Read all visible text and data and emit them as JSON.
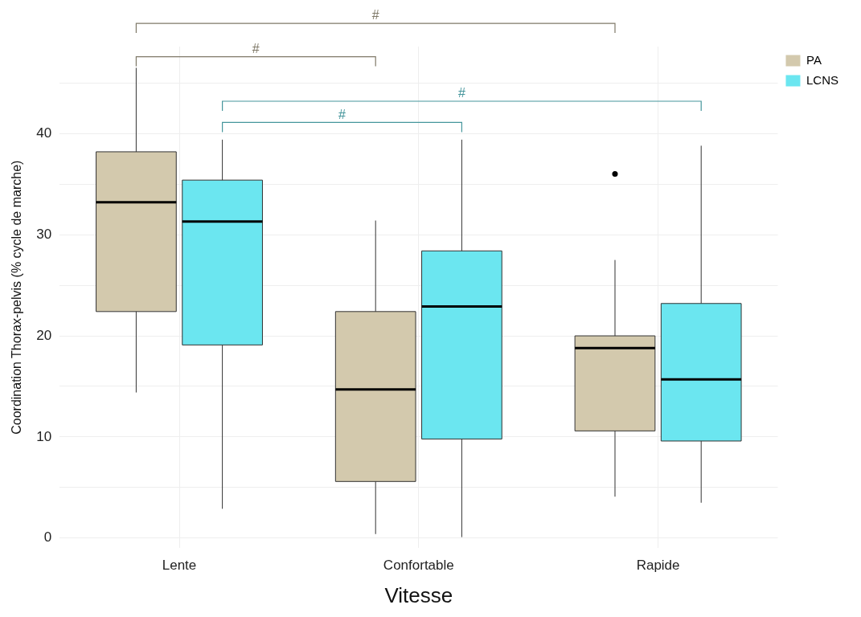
{
  "chart_data": {
    "type": "box",
    "xlabel": "Vitesse",
    "ylabel": "Coordination Thorax-pelvis (% cycle de marche)",
    "categories": [
      "Lente",
      "Confortable",
      "Rapide"
    ],
    "series": [
      {
        "name": "PA",
        "color": "#d3c9ad",
        "boxes": [
          {
            "low": 14.4,
            "q1": 22.4,
            "median": 33.2,
            "q3": 38.2,
            "high": 46.5
          },
          {
            "low": 0.4,
            "q1": 5.6,
            "median": 14.7,
            "q3": 22.4,
            "high": 31.4
          },
          {
            "low": 4.1,
            "q1": 10.6,
            "median": 18.8,
            "q3": 20.0,
            "high": 27.5,
            "outliers": [
              36.0
            ]
          }
        ]
      },
      {
        "name": "LCNS",
        "color": "#6be6f0",
        "boxes": [
          {
            "low": 2.9,
            "q1": 19.1,
            "median": 31.3,
            "q3": 35.4,
            "high": 39.4
          },
          {
            "low": 0.1,
            "q1": 9.8,
            "median": 22.9,
            "q3": 28.4,
            "high": 39.4
          },
          {
            "low": 3.5,
            "q1": 9.6,
            "median": 15.7,
            "q3": 23.2,
            "high": 38.8
          }
        ]
      }
    ],
    "ylim": [
      -1,
      48.6
    ],
    "yticks": [
      0,
      {
        "value": 5,
        "label": null
      },
      10,
      {
        "value": 15,
        "label": null
      },
      20,
      {
        "value": 25,
        "label": null
      },
      30,
      {
        "value": 35,
        "label": null
      },
      40,
      {
        "value": 45,
        "label": null
      }
    ],
    "grid": true,
    "legend": "top right",
    "annotations": [
      "#",
      "#",
      "#",
      "#"
    ]
  }
}
